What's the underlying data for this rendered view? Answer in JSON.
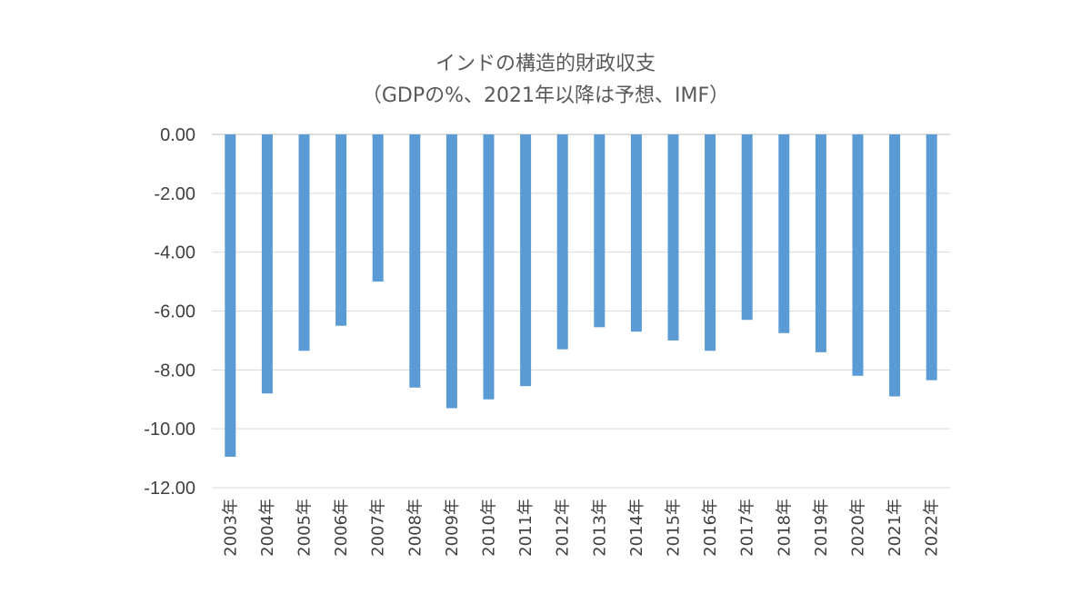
{
  "chart_data": {
    "type": "bar",
    "title": "インドの構造的財政収支",
    "subtitle": "（GDPの%、2021年以降は予想、IMF）",
    "xlabel": "",
    "ylabel": "",
    "ylim": [
      -12,
      0
    ],
    "yticks": [
      0,
      -2,
      -4,
      -6,
      -8,
      -10,
      -12
    ],
    "ytick_labels": [
      "0.00",
      "-2.00",
      "-4.00",
      "-6.00",
      "-8.00",
      "-10.00",
      "-12.00"
    ],
    "grid": true,
    "legend": "none",
    "bar_color": "#5B9BD5",
    "categories": [
      "2003年",
      "2004年",
      "2005年",
      "2006年",
      "2007年",
      "2008年",
      "2009年",
      "2010年",
      "2011年",
      "2012年",
      "2013年",
      "2014年",
      "2015年",
      "2016年",
      "2017年",
      "2018年",
      "2019年",
      "2020年",
      "2021年",
      "2022年"
    ],
    "values": [
      -10.95,
      -8.8,
      -7.35,
      -6.5,
      -5.0,
      -8.6,
      -9.3,
      -9.0,
      -8.55,
      -7.3,
      -6.55,
      -6.7,
      -7.0,
      -7.35,
      -6.3,
      -6.75,
      -7.4,
      -8.2,
      -8.9,
      -8.35
    ]
  }
}
